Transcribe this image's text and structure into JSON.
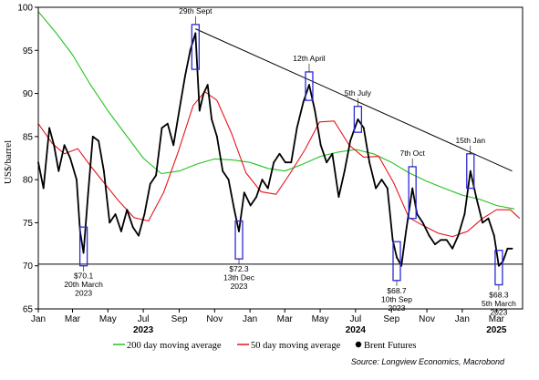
{
  "chart_data": {
    "type": "line",
    "ylabel": "US$/barrel",
    "ylim": [
      65,
      100
    ],
    "yticks": [
      65,
      70,
      75,
      80,
      85,
      90,
      95,
      100
    ],
    "xlim": [
      "2023-01-01",
      "2025-04-15"
    ],
    "xticks": [
      {
        "date": "2023-01-01",
        "label": "Jan"
      },
      {
        "date": "2023-03-01",
        "label": "Mar"
      },
      {
        "date": "2023-05-01",
        "label": "May"
      },
      {
        "date": "2023-07-01",
        "label": "Jul"
      },
      {
        "date": "2023-09-01",
        "label": "Sep"
      },
      {
        "date": "2023-11-01",
        "label": "Nov"
      },
      {
        "date": "2024-01-01",
        "label": "Jan"
      },
      {
        "date": "2024-03-01",
        "label": "Mar"
      },
      {
        "date": "2024-05-01",
        "label": "May"
      },
      {
        "date": "2024-07-01",
        "label": "Jul"
      },
      {
        "date": "2024-09-01",
        "label": "Sep"
      },
      {
        "date": "2024-11-01",
        "label": "Nov"
      },
      {
        "date": "2025-01-01",
        "label": "Jan"
      },
      {
        "date": "2025-03-01",
        "label": "Mar"
      }
    ],
    "year_labels": [
      {
        "date": "2023-07-01",
        "label": "2023"
      },
      {
        "date": "2024-07-01",
        "label": "2024"
      },
      {
        "date": "2025-03-01",
        "label": "2025"
      }
    ],
    "colors": {
      "brent": "#000000",
      "ma50": "#e8141c",
      "ma200": "#22c21e",
      "boxes": "#2a2ad6",
      "trend": "#000000"
    },
    "series": [
      {
        "name": "200 day moving average",
        "x": [
          "2023-01-01",
          "2023-02-01",
          "2023-03-01",
          "2023-04-01",
          "2023-05-01",
          "2023-06-01",
          "2023-07-01",
          "2023-08-01",
          "2023-09-01",
          "2023-10-01",
          "2023-11-01",
          "2023-12-01",
          "2024-01-01",
          "2024-02-01",
          "2024-03-01",
          "2024-04-01",
          "2024-05-01",
          "2024-06-01",
          "2024-07-01",
          "2024-08-01",
          "2024-09-01",
          "2024-10-01",
          "2024-11-01",
          "2024-12-01",
          "2025-01-01",
          "2025-02-01",
          "2025-03-01",
          "2025-04-01"
        ],
        "values": [
          99.5,
          97.0,
          94.5,
          91.0,
          88.0,
          85.2,
          82.5,
          80.7,
          81.0,
          81.8,
          82.4,
          82.3,
          82.0,
          81.3,
          81.0,
          81.8,
          82.7,
          83.2,
          83.5,
          83.0,
          82.0,
          80.8,
          79.8,
          79.0,
          78.2,
          77.7,
          77.0,
          76.6
        ]
      },
      {
        "name": "50 day moving average",
        "x": [
          "2023-01-01",
          "2023-01-25",
          "2023-02-15",
          "2023-03-10",
          "2023-04-01",
          "2023-04-20",
          "2023-05-20",
          "2023-06-15",
          "2023-07-10",
          "2023-08-05",
          "2023-08-30",
          "2023-09-25",
          "2023-10-15",
          "2023-11-05",
          "2023-11-30",
          "2023-12-25",
          "2024-01-20",
          "2024-02-15",
          "2024-03-10",
          "2024-04-05",
          "2024-04-30",
          "2024-05-25",
          "2024-06-20",
          "2024-07-15",
          "2024-08-10",
          "2024-09-05",
          "2024-10-01",
          "2024-10-25",
          "2024-11-20",
          "2024-12-15",
          "2025-01-10",
          "2025-02-05",
          "2025-03-01",
          "2025-03-25",
          "2025-04-10"
        ],
        "values": [
          86.5,
          84.2,
          83.0,
          83.6,
          81.6,
          80.0,
          77.5,
          75.6,
          75.2,
          78.5,
          83.2,
          88.6,
          90.2,
          89.2,
          85.4,
          80.8,
          78.6,
          78.3,
          80.7,
          83.5,
          86.7,
          86.8,
          84.0,
          82.6,
          82.7,
          79.6,
          75.6,
          74.7,
          73.8,
          73.4,
          74.0,
          75.5,
          76.5,
          76.5,
          75.5
        ]
      },
      {
        "name": "Brent Futures",
        "x": [
          "2023-01-01",
          "2023-01-10",
          "2023-01-20",
          "2023-01-28",
          "2023-02-05",
          "2023-02-15",
          "2023-02-25",
          "2023-03-08",
          "2023-03-14",
          "2023-03-20",
          "2023-03-28",
          "2023-04-05",
          "2023-04-15",
          "2023-04-24",
          "2023-05-04",
          "2023-05-14",
          "2023-05-24",
          "2023-06-03",
          "2023-06-13",
          "2023-06-23",
          "2023-07-03",
          "2023-07-13",
          "2023-07-23",
          "2023-08-02",
          "2023-08-12",
          "2023-08-22",
          "2023-09-01",
          "2023-09-11",
          "2023-09-20",
          "2023-09-29",
          "2023-10-06",
          "2023-10-13",
          "2023-10-20",
          "2023-10-27",
          "2023-11-05",
          "2023-11-15",
          "2023-11-25",
          "2023-12-05",
          "2023-12-13",
          "2023-12-22",
          "2024-01-02",
          "2024-01-12",
          "2024-01-22",
          "2024-02-01",
          "2024-02-11",
          "2024-02-21",
          "2024-03-02",
          "2024-03-12",
          "2024-03-22",
          "2024-04-02",
          "2024-04-12",
          "2024-04-22",
          "2024-05-02",
          "2024-05-12",
          "2024-05-22",
          "2024-06-02",
          "2024-06-12",
          "2024-06-22",
          "2024-07-05",
          "2024-07-15",
          "2024-07-25",
          "2024-08-05",
          "2024-08-15",
          "2024-08-25",
          "2024-09-03",
          "2024-09-10",
          "2024-09-18",
          "2024-09-26",
          "2024-10-07",
          "2024-10-15",
          "2024-10-25",
          "2024-11-05",
          "2024-11-15",
          "2024-11-25",
          "2024-12-05",
          "2024-12-15",
          "2024-12-25",
          "2025-01-05",
          "2025-01-15",
          "2025-01-25",
          "2025-02-05",
          "2025-02-15",
          "2025-02-25",
          "2025-03-05",
          "2025-03-12",
          "2025-03-20",
          "2025-03-28"
        ],
        "values": [
          82,
          79,
          86,
          84,
          81,
          84,
          82.5,
          80,
          74,
          71.5,
          78.5,
          85,
          84.5,
          81,
          75,
          76,
          74,
          76.5,
          74.5,
          73.5,
          76,
          79.5,
          80.5,
          86,
          86.5,
          84,
          88,
          92,
          95,
          97,
          88,
          90,
          91,
          87,
          85,
          81,
          80,
          76.5,
          74,
          78.5,
          77,
          78,
          80,
          79,
          82,
          83,
          82,
          82,
          86,
          89,
          91,
          88,
          84,
          82,
          83,
          78,
          81,
          84.5,
          87,
          86,
          82,
          79,
          80,
          79,
          73,
          71,
          70,
          74,
          79,
          76,
          75,
          73.5,
          72.5,
          73,
          73,
          72,
          73.5,
          76,
          81,
          78,
          75,
          75.5,
          73.5,
          70,
          70.5,
          72,
          72
        ]
      }
    ],
    "trendline": {
      "x": [
        "2023-09-29",
        "2025-03-28"
      ],
      "values": [
        97.5,
        81
      ]
    },
    "support_line": {
      "value": 70.2
    },
    "annotations": [
      {
        "date": "2023-09-29",
        "label": "29th Sept",
        "position": "above",
        "box": [
          92.8,
          98
        ]
      },
      {
        "date": "2024-04-12",
        "label": "12th April",
        "position": "above",
        "box": [
          89.2,
          92.5
        ]
      },
      {
        "date": "2024-07-05",
        "label": "5th July",
        "position": "above",
        "box": [
          85.5,
          88.5
        ]
      },
      {
        "date": "2024-10-07",
        "label": "7th Oct",
        "position": "above",
        "box": [
          75.5,
          81.5
        ]
      },
      {
        "date": "2025-01-15",
        "label": "15th Jan",
        "position": "above",
        "box": [
          79,
          83
        ]
      },
      {
        "date": "2023-03-20",
        "label": "$70.1 20th March 2023",
        "position": "below",
        "box": [
          70,
          74.5
        ]
      },
      {
        "date": "2023-12-13",
        "label": "$72.3 13th Dec 2023",
        "position": "below",
        "box": [
          70.8,
          75.2
        ]
      },
      {
        "date": "2024-09-10",
        "label": "$68.7 10th Sep 2023",
        "position": "below",
        "box": [
          68.3,
          72.8
        ]
      },
      {
        "date": "2025-03-05",
        "label": "$68.3 5th March 2023",
        "position": "below",
        "box": [
          67.8,
          71.8
        ]
      }
    ],
    "legend": [
      "200 day moving average",
      "50 day moving average",
      "Brent Futures"
    ],
    "legend_position": "bottom",
    "source": "Source: Longview Economics, Macrobond"
  }
}
